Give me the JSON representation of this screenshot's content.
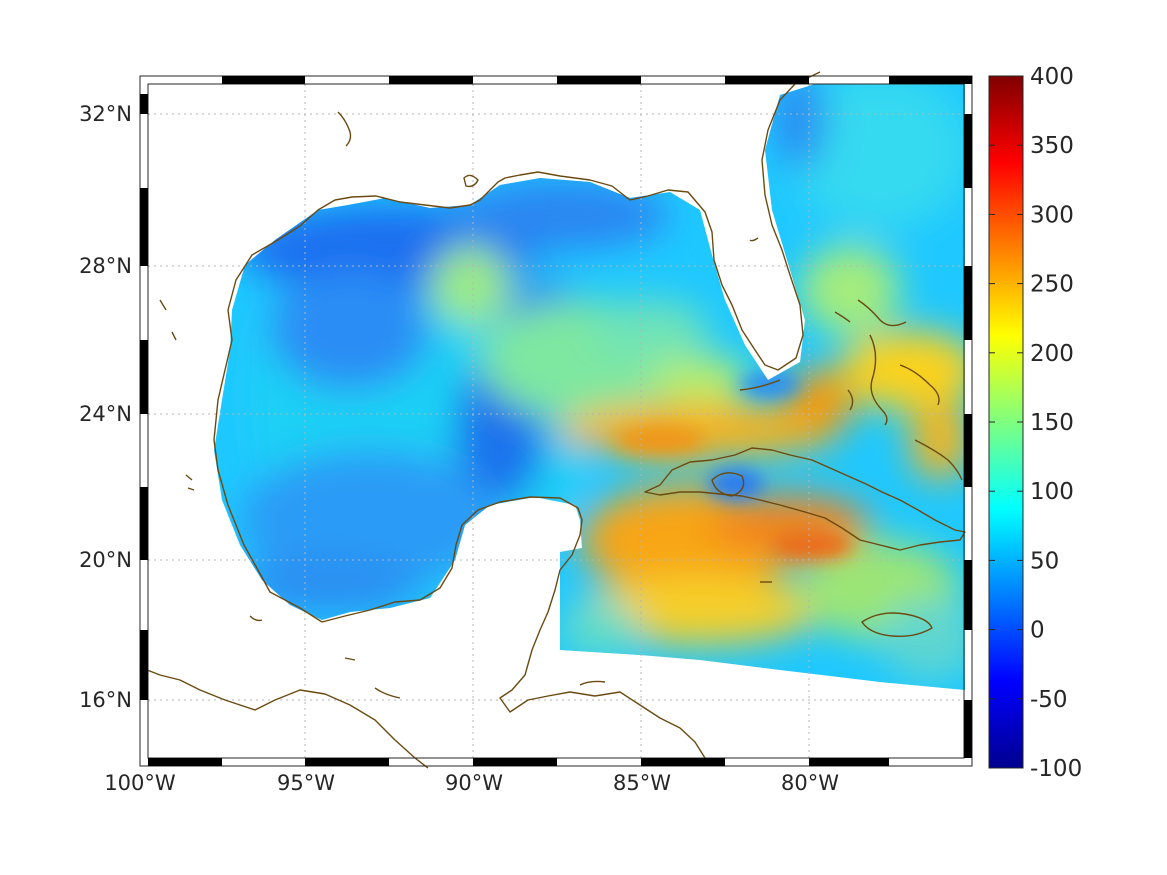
{
  "map": {
    "longitude_ticks": [
      "100°W",
      "95°W",
      "90°W",
      "85°W",
      "80°W"
    ],
    "latitude_ticks": [
      "32°N",
      "28°N",
      "24°N",
      "20°N",
      "16°N"
    ],
    "longitude_tick_values": [
      -100,
      -95,
      -90,
      -85,
      -80
    ],
    "latitude_tick_values": [
      32,
      28,
      24,
      20,
      16
    ],
    "lon_range": [
      -100,
      -75
    ],
    "lat_range": [
      14.2,
      32.9
    ],
    "gridlines": true,
    "coastline_color": "#6b4a12"
  },
  "colorbar": {
    "tick_labels": [
      "400",
      "350",
      "300",
      "250",
      "200",
      "150",
      "100",
      "50",
      "0",
      "-50",
      "-100"
    ],
    "tick_values": [
      400,
      350,
      300,
      250,
      200,
      150,
      100,
      50,
      0,
      -50,
      -100
    ],
    "range": [
      -100,
      400
    ],
    "colormap": "jet"
  }
}
